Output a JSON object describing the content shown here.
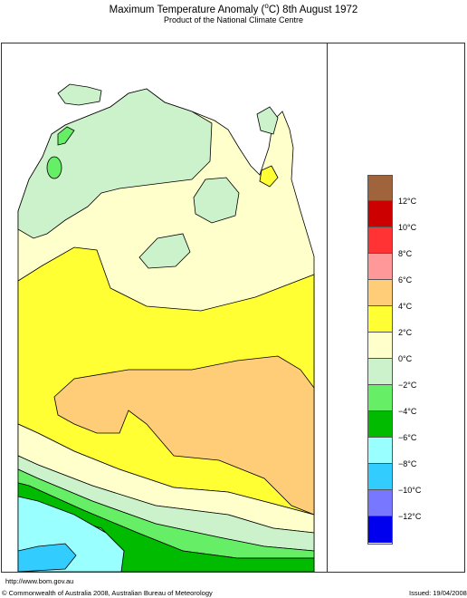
{
  "header": {
    "title_main": "Maximum Temperature Anomaly (",
    "title_unit": "o",
    "title_after": "C)  8th August 1972",
    "subtitle": "Product of the National Climate Centre"
  },
  "legend": {
    "colors": [
      "#a0643c",
      "#cc0000",
      "#ff3333",
      "#ff9999",
      "#ffcc77",
      "#ffff33",
      "#ffffcc",
      "#ccf2cc",
      "#66ee66",
      "#00bb00",
      "#99ffff",
      "#33ccff",
      "#7777ff",
      "#0000ee"
    ],
    "labels": [
      "12°C",
      "10°C",
      "8°C",
      "6°C",
      "4°C",
      "2°C",
      "0°C",
      "−2°C",
      "−4°C",
      "−6°C",
      "−8°C",
      "−10°C",
      "−12°C"
    ]
  },
  "footer": {
    "url": "http://www.bom.gov.au",
    "copyright": "© Commonwealth of Australia 2008, Australian Bureau of Meteorology",
    "issued": "Issued: 19/04/2008"
  }
}
